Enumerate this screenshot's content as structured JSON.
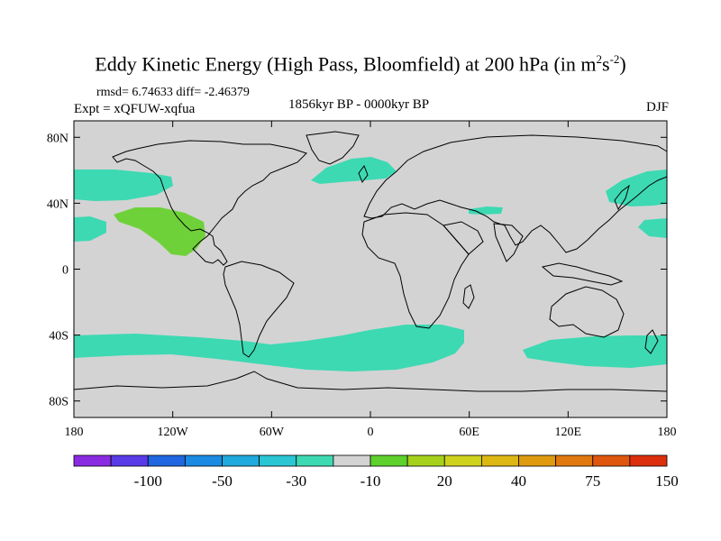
{
  "title": {
    "main": "Eddy Kinetic Energy (High Pass, Bloomfield) at 200 hPa (in m",
    "sup1": "2",
    "mid": "s",
    "sup2": "-2",
    "end": ")"
  },
  "stats": "rmsd= 6.74633 diff= -2.46379",
  "experiment": "Expt = xQFUW-xqfua",
  "period": "1856kyr BP - 0000kyr BP",
  "season": "DJF",
  "map": {
    "projection": "cylindrical equidistant",
    "lon_range": [
      -180,
      180
    ],
    "lat_range": [
      -90,
      90
    ],
    "background_color": "#d3d3d3",
    "y_ticks": [
      "80N",
      "40N",
      "0",
      "40S",
      "80S"
    ],
    "x_ticks": [
      "180",
      "120W",
      "60W",
      "0",
      "60E",
      "120E",
      "180"
    ],
    "regions": [
      {
        "name": "north-pacific-west",
        "level": "-20",
        "color": "#3dd9b3"
      },
      {
        "name": "north-pacific-east",
        "level": "-20",
        "color": "#3dd9b3"
      },
      {
        "name": "north-atlantic",
        "level": "-20",
        "color": "#3dd9b3"
      },
      {
        "name": "subtropical-east-pacific",
        "level": "20",
        "color": "#6fd13a"
      },
      {
        "name": "southern-ocean-storm-track",
        "level": "-20",
        "color": "#3dd9b3"
      }
    ]
  },
  "colorbar": {
    "colors": [
      "#8a2be2",
      "#5a3be8",
      "#1f66e0",
      "#1a8ae3",
      "#20a9dd",
      "#2ac6d4",
      "#3dd9b3",
      "#d3d3d3",
      "#5ed12c",
      "#a6d11a",
      "#cfd21a",
      "#ddb814",
      "#e09a10",
      "#e1780f",
      "#df560e",
      "#dc300c"
    ],
    "labels": [
      "-100",
      "-50",
      "-30",
      "-10",
      "20",
      "40",
      "75",
      "150"
    ]
  }
}
